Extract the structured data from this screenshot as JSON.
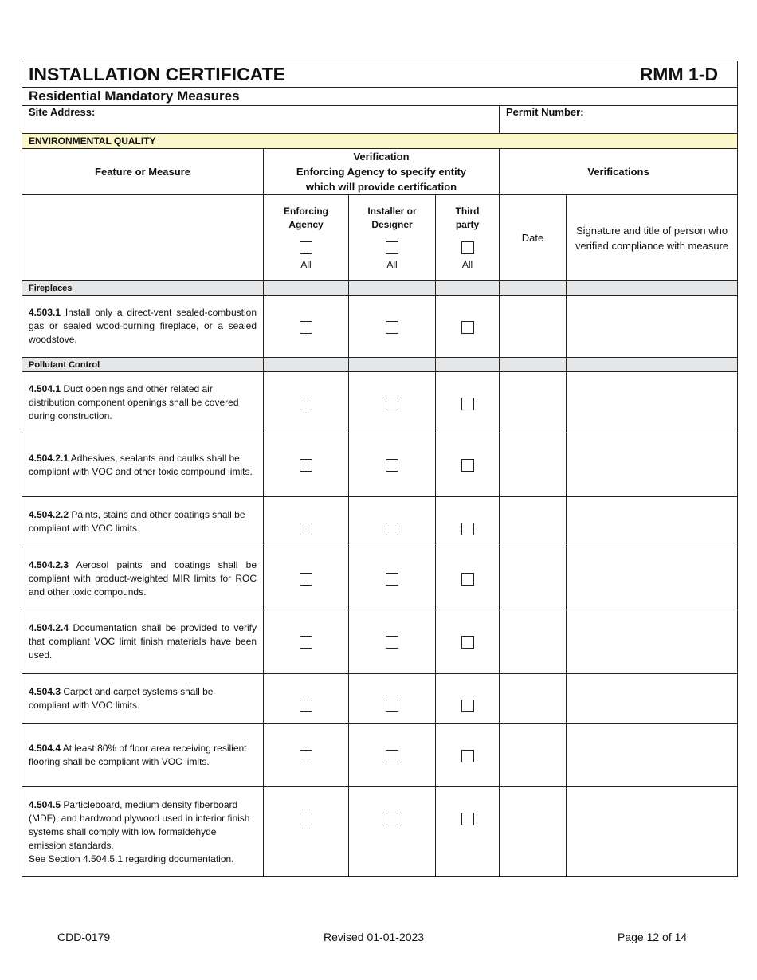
{
  "header": {
    "title": "INSTALLATION CERTIFICATE",
    "form_id": "RMM 1-D",
    "subtitle": "Residential Mandatory Measures",
    "site_address_label": "Site Address:",
    "permit_number_label": "Permit Number:",
    "section": "ENVIRONMENTAL QUALITY"
  },
  "columns": {
    "feature": "Feature or Measure",
    "verification_l1": "Verification",
    "verification_l2": "Enforcing Agency to specify entity",
    "verification_l3": "which will provide certification",
    "verifications": "Verifications",
    "enforcing": "Enforcing Agency",
    "installer": "Installer or Designer",
    "third": "Third party",
    "all": "All",
    "date": "Date",
    "signature": "Signature and title of person who verified compliance with measure"
  },
  "rows": [
    {
      "section": "Fireplaces"
    },
    {
      "code": "4.503.1",
      "text": "Install only a direct-vent sealed-combustion gas or sealed wood-burning fireplace, or a sealed woodstove.",
      "h": 78,
      "j": true
    },
    {
      "section": "Pollutant Control"
    },
    {
      "code": "4.504.1",
      "text": "Duct openings and other related air distribution component openings shall be covered during construction.",
      "h": 77
    },
    {
      "code": "4.504.2.1",
      "text": "Adhesives, sealants and caulks shall be compliant with VOC and other toxic compound limits.",
      "h": 80
    },
    {
      "code": "4.504.2.2",
      "text": "Paints, stains and other coatings shall be compliant with VOC limits.",
      "h": 63
    },
    {
      "code": "4.504.2.3",
      "text": "Aerosol paints and coatings shall be compliant with product-weighted MIR limits for ROC and other toxic compounds.",
      "h": 79,
      "j": true
    },
    {
      "code": "4.504.2.4",
      "text": "Documentation shall be provided to verify that compliant VOC limit finish materials have been used.",
      "h": 80,
      "j": true
    },
    {
      "code": "4.504.3",
      "text": "Carpet and carpet systems shall be compliant with VOC limits.",
      "h": 63
    },
    {
      "code": "4.504.4",
      "text": "At least 80% of floor area receiving resilient flooring shall be compliant with VOC limits.",
      "h": 79
    },
    {
      "code": "4.504.5",
      "text": "Particleboard, medium density fiberboard (MDF), and hardwood plywood used in interior finish systems shall comply with low formaldehyde emission standards.",
      "extra": "See Section 4.504.5.1 regarding documentation.",
      "h": 113
    }
  ],
  "footer": {
    "left": "CDD-0179",
    "center": "Revised 01-01-2023",
    "right": "Page 12 of 14"
  }
}
